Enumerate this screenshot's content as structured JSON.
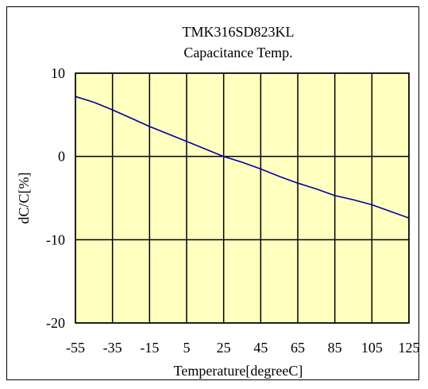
{
  "chart_data": {
    "type": "line",
    "title": "TMK316SD823KL",
    "subtitle": "Capacitance Temp.",
    "xlabel": "Temperature[degreeC]",
    "ylabel": "dC/C[%]",
    "xlim": [
      -55,
      125
    ],
    "ylim": [
      -20,
      10
    ],
    "x_ticks": [
      "-55",
      "-35",
      "-15",
      "5",
      "25",
      "45",
      "65",
      "85",
      "105",
      "125"
    ],
    "y_ticks": [
      "10",
      "0",
      "-10",
      "-20"
    ],
    "grid": true,
    "series": [
      {
        "x": [
          -55,
          -45,
          -35,
          -25,
          -15,
          -5,
          5,
          15,
          25,
          35,
          45,
          55,
          65,
          75,
          85,
          95,
          105,
          115,
          125
        ],
        "y": [
          7.2,
          6.5,
          5.6,
          4.6,
          3.6,
          2.7,
          1.8,
          0.9,
          0.0,
          -0.7,
          -1.5,
          -2.4,
          -3.2,
          -3.9,
          -4.7,
          -5.2,
          -5.8,
          -6.6,
          -7.4
        ]
      }
    ],
    "colors": {
      "line": "#0000a0",
      "plot_bg": "#ffffc0"
    }
  }
}
